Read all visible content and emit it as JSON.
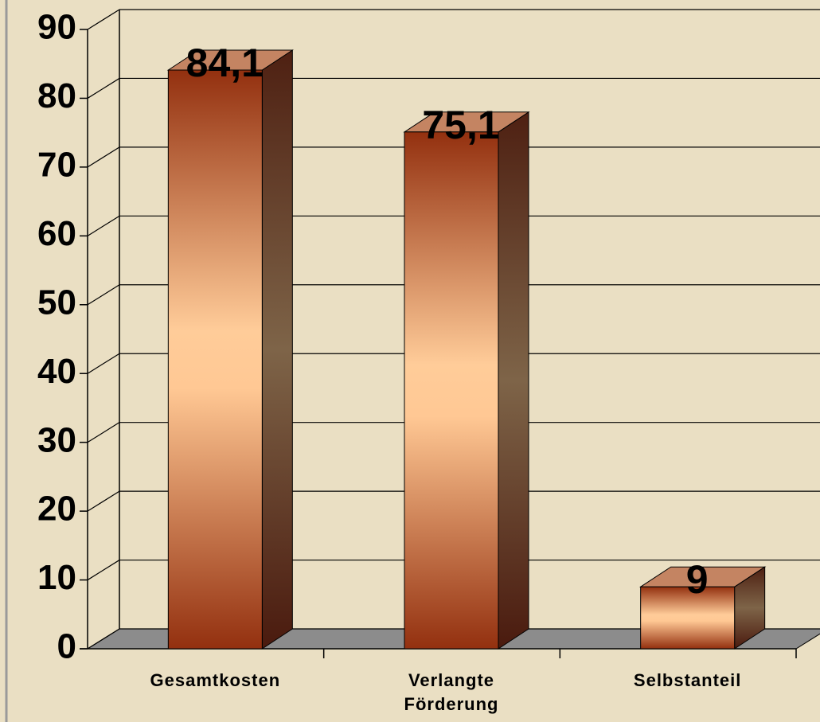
{
  "chart_data": {
    "type": "bar3d",
    "categories": [
      "Gesamtkosten",
      "Verlangte Förderung",
      "Selbstanteil"
    ],
    "values": [
      84.1,
      75.1,
      9
    ],
    "value_labels": [
      "84,1",
      "75,1",
      "9"
    ],
    "ylim": [
      0,
      90
    ],
    "yticks": [
      0,
      10,
      20,
      30,
      40,
      50,
      60,
      70,
      80,
      90
    ],
    "grid": true,
    "color": "#f4b585"
  }
}
